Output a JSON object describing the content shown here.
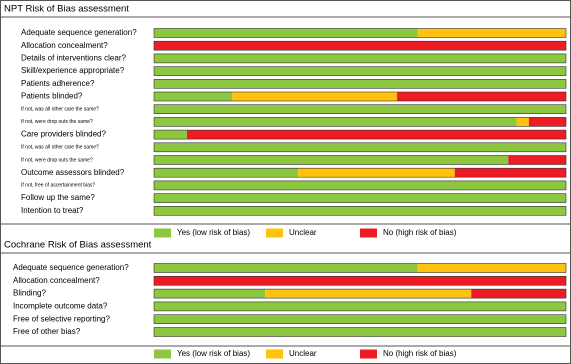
{
  "chart_data": [
    {
      "type": "bar",
      "orientation": "horizontal",
      "stacked": true,
      "title": "NPT Risk of Bias assessment",
      "categories": [
        "Adequate sequence generation?",
        "Allocation concealment?",
        "Details of interventions clear?",
        "Skill/experience appropriate?",
        "Patients adherence?",
        "Patients blinded?",
        "If not, was all other care the same?",
        "If not, were drop outs the same?",
        "Care providers blinded?",
        "If not, was all other care the same?",
        "If not, were drop outs the same?",
        "Outcome assessors blinded?",
        "If not, free of ascertainment bias?",
        "Follow up the same?",
        "Intention to treat?"
      ],
      "series": [
        {
          "name": "Yes (low risk of bias)",
          "color": "#8dc63f",
          "values": [
            64,
            0,
            100,
            100,
            100,
            19,
            100,
            88,
            8,
            100,
            86,
            35,
            100,
            100,
            100
          ]
        },
        {
          "name": "Unclear",
          "color": "#ffc20e",
          "values": [
            36,
            0,
            0,
            0,
            0,
            40,
            0,
            3,
            0,
            0,
            0,
            38,
            0,
            0,
            0
          ]
        },
        {
          "name": "No (high risk of bias)",
          "color": "#ed1c24",
          "values": [
            0,
            100,
            0,
            0,
            0,
            41,
            0,
            9,
            92,
            0,
            14,
            27,
            0,
            0,
            0
          ]
        }
      ],
      "xlim": [
        0,
        100
      ]
    },
    {
      "type": "bar",
      "orientation": "horizontal",
      "stacked": true,
      "title": "Cochrane Risk of Bias assessment",
      "categories": [
        "Adequate sequence generation?",
        "Allocation concealment?",
        "Blinding?",
        "Incomplete outcome data?",
        "Free of selective reporting?",
        "Free of other bias?"
      ],
      "series": [
        {
          "name": "Yes (low risk of bias)",
          "color": "#8dc63f",
          "values": [
            64,
            0,
            27,
            100,
            100,
            100
          ]
        },
        {
          "name": "Unclear",
          "color": "#ffc20e",
          "values": [
            36,
            0,
            50,
            0,
            0,
            0
          ]
        },
        {
          "name": "No (high risk of bias)",
          "color": "#ed1c24",
          "values": [
            0,
            100,
            23,
            0,
            0,
            0
          ]
        }
      ],
      "xlim": [
        0,
        100
      ]
    }
  ]
}
